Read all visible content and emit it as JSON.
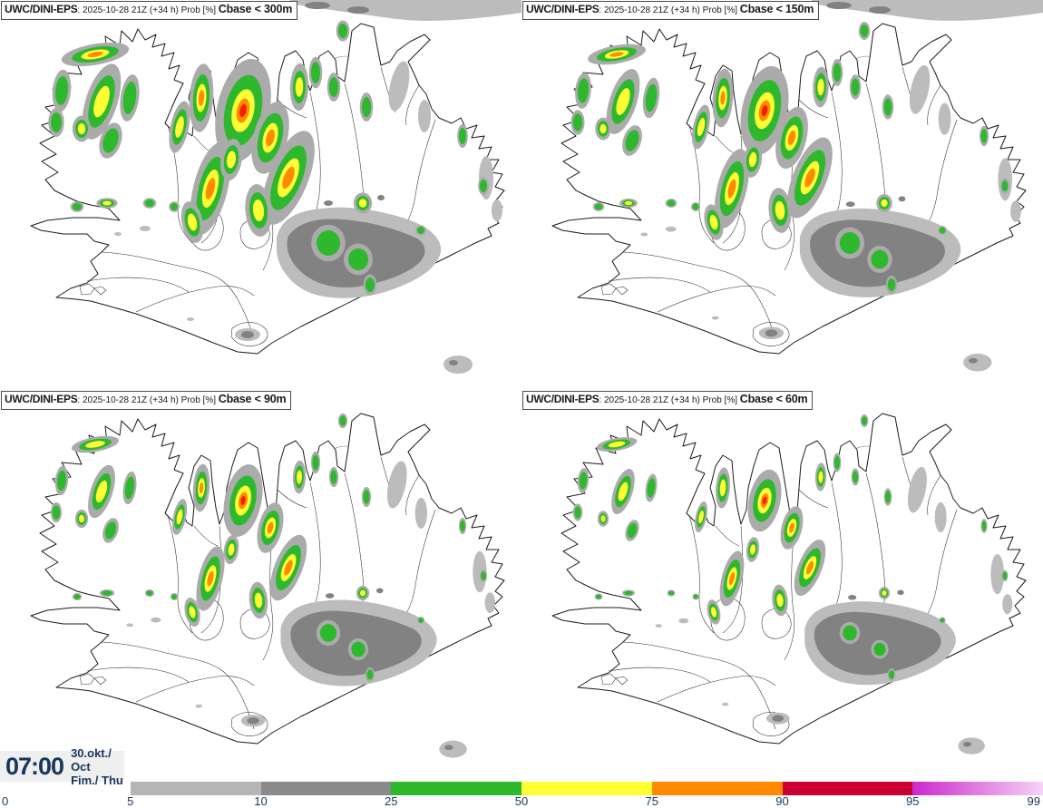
{
  "panels": [
    {
      "model": "UWC/DINI-EPS",
      "meta": ": 2025-10-28 21Z (+34 h) Prob [%] ",
      "threshold": "Cbase < 300m"
    },
    {
      "model": "UWC/DINI-EPS",
      "meta": ": 2025-10-28 21Z (+34 h) Prob [%] ",
      "threshold": "Cbase < 150m"
    },
    {
      "model": "UWC/DINI-EPS",
      "meta": ": 2025-10-28 21Z (+34 h) Prob [%] ",
      "threshold": "Cbase < 90m"
    },
    {
      "model": "UWC/DINI-EPS",
      "meta": ": 2025-10-28 21Z (+34 h) Prob [%] ",
      "threshold": "Cbase < 60m"
    }
  ],
  "footer": {
    "time": "07:00",
    "date_month": "30.okt./ Oct",
    "date_day": "Fim./ Thu"
  },
  "legend": {
    "tick_labels": [
      "0",
      "5",
      "10",
      "25",
      "50",
      "75",
      "90",
      "95",
      "99"
    ],
    "segment_colors": [
      "#ffffff",
      "#b5b5b5",
      "#8a8a8a",
      "#2eb82e",
      "#ffff33",
      "#ff8a00",
      "#cc0033",
      "#cc29cc"
    ],
    "last_segment_gradient_to": "#f6d4f6",
    "label_color": "#17365d"
  },
  "map_palette": {
    "prob_25_50": "#2eb82e",
    "prob_50_75": "#ffff33",
    "prob_75_90": "#ff8a00",
    "prob_90_plus": "#f22000",
    "halo_gray": "#ababab",
    "terrain_light": "#bcbcbc",
    "terrain_dark": "#828282",
    "coast_line": "#1b1b1b",
    "accent_navy": "#17365d"
  }
}
